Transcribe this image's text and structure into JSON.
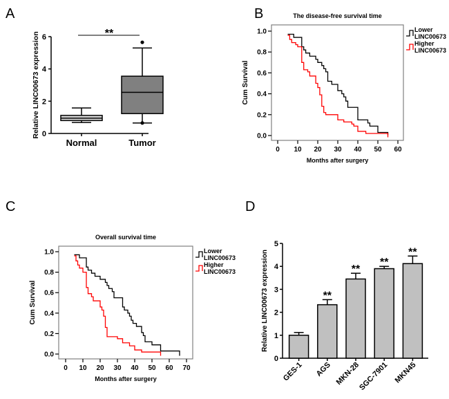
{
  "panels": {
    "A": "A",
    "B": "B",
    "C": "C",
    "D": "D"
  },
  "chart_data": [
    {
      "id": "A",
      "type": "box",
      "title": "",
      "xlabel": "",
      "ylabel": "Relative LINC00673 expression",
      "ylim": [
        0,
        6
      ],
      "yticks": [
        "0",
        "2",
        "4",
        "6"
      ],
      "yticks_values": [
        0,
        2,
        4,
        6
      ],
      "categories": [
        "Normal",
        "Tumor"
      ],
      "boxes": [
        {
          "name": "Normal",
          "min": 0.68,
          "q1": 0.8,
          "median": 0.95,
          "q3": 1.12,
          "max": 1.58,
          "outliers": [],
          "color": "#d3d3d3"
        },
        {
          "name": "Tumor",
          "min": 0.65,
          "q1": 1.23,
          "median": 2.55,
          "q3": 3.55,
          "max": 5.3,
          "outliers": [
            5.65,
            0.65
          ],
          "color": "#808080"
        }
      ],
      "significance": "**"
    },
    {
      "id": "B",
      "type": "line",
      "subtype": "kaplan-meier",
      "title": "The disease-free survival time",
      "xlabel": "Months after surgery",
      "ylabel": "Cum Survival",
      "xlim": [
        0,
        60
      ],
      "ylim": [
        0,
        1
      ],
      "xticks": [
        "0",
        "10",
        "20",
        "30",
        "40",
        "50",
        "60"
      ],
      "xticks_values": [
        0,
        10,
        20,
        30,
        40,
        50,
        60
      ],
      "yticks": [
        "0.0",
        "0.2",
        "0.4",
        "0.6",
        "0.8",
        "1.0"
      ],
      "yticks_values": [
        0,
        0.2,
        0.4,
        0.6,
        0.8,
        1.0
      ],
      "legend_position": "right",
      "series": [
        {
          "name": "Lower LINC00673",
          "label_line1": "Lower",
          "label_line2": "LINC00673",
          "color": "#000000",
          "x": [
            5,
            8,
            12,
            13,
            14,
            16,
            19,
            20,
            22,
            23,
            24,
            25,
            27,
            30,
            32,
            33,
            34,
            35,
            40,
            45,
            46,
            50,
            55
          ],
          "y": [
            0.97,
            0.94,
            0.85,
            0.82,
            0.79,
            0.76,
            0.73,
            0.7,
            0.67,
            0.64,
            0.61,
            0.52,
            0.49,
            0.43,
            0.4,
            0.37,
            0.33,
            0.27,
            0.15,
            0.12,
            0.09,
            0.03,
            0.03
          ]
        },
        {
          "name": "Higher LINC00673",
          "label_line1": "Higher",
          "label_line2": "LINC00673",
          "color": "#ff0000",
          "x": [
            5,
            6,
            7,
            9,
            10,
            11,
            12,
            13,
            15,
            16,
            19,
            20,
            21,
            22,
            23,
            24,
            30,
            33,
            37,
            38,
            40,
            44,
            55
          ],
          "y": [
            0.96,
            0.92,
            0.89,
            0.87,
            0.85,
            0.85,
            0.7,
            0.63,
            0.61,
            0.57,
            0.5,
            0.46,
            0.39,
            0.28,
            0.22,
            0.2,
            0.15,
            0.13,
            0.11,
            0.09,
            0.04,
            0.02,
            0.01
          ]
        }
      ]
    },
    {
      "id": "C",
      "type": "line",
      "subtype": "kaplan-meier",
      "title": "Overall survival time",
      "xlabel": "Months after surgery",
      "ylabel": "Cum Survival",
      "xlim": [
        0,
        70
      ],
      "ylim": [
        0,
        1
      ],
      "xticks": [
        "0",
        "10",
        "20",
        "30",
        "40",
        "50",
        "60",
        "70"
      ],
      "xticks_values": [
        0,
        10,
        20,
        30,
        40,
        50,
        60,
        70
      ],
      "yticks": [
        "0.0",
        "0.2",
        "0.4",
        "0.6",
        "0.8",
        "1.0"
      ],
      "yticks_values": [
        0,
        0.2,
        0.4,
        0.6,
        0.8,
        1.0
      ],
      "legend_position": "right",
      "series": [
        {
          "name": "Lower LINC00673",
          "label_line1": "Lower",
          "label_line2": "LINC00673",
          "color": "#000000",
          "x": [
            5,
            8,
            12,
            13,
            15,
            17,
            20,
            23,
            24,
            25,
            27,
            28,
            30,
            33,
            34,
            36,
            37,
            38,
            39,
            41,
            44,
            45,
            46,
            50,
            55,
            66
          ],
          "y": [
            0.97,
            0.94,
            0.85,
            0.82,
            0.79,
            0.76,
            0.73,
            0.7,
            0.67,
            0.64,
            0.61,
            0.55,
            0.55,
            0.46,
            0.43,
            0.4,
            0.37,
            0.33,
            0.3,
            0.27,
            0.21,
            0.18,
            0.12,
            0.09,
            0.03,
            0.01
          ]
        },
        {
          "name": "Higher LINC00673",
          "label_line1": "Higher",
          "label_line2": "LINC00673",
          "color": "#ff0000",
          "x": [
            5,
            6,
            7,
            8,
            10,
            12,
            13,
            15,
            16,
            20,
            21,
            22,
            23,
            24,
            30,
            33,
            37,
            40,
            44,
            55
          ],
          "y": [
            0.96,
            0.91,
            0.87,
            0.84,
            0.8,
            0.65,
            0.59,
            0.56,
            0.52,
            0.46,
            0.43,
            0.37,
            0.26,
            0.17,
            0.15,
            0.11,
            0.08,
            0.04,
            0.02,
            0.01
          ]
        }
      ]
    },
    {
      "id": "D",
      "type": "bar",
      "title": "",
      "xlabel": "",
      "ylabel": "Relative LINC00673 expression",
      "ylim": [
        0,
        5
      ],
      "yticks": [
        "0",
        "1",
        "2",
        "3",
        "4",
        "5"
      ],
      "yticks_values": [
        0,
        1,
        2,
        3,
        4,
        5
      ],
      "categories": [
        "GES-1",
        "AGS",
        "MKN-28",
        "SGC-7901",
        "MKN45"
      ],
      "values": [
        1.0,
        2.33,
        3.45,
        3.9,
        4.12
      ],
      "errors": [
        0.12,
        0.22,
        0.25,
        0.1,
        0.33
      ],
      "significance": [
        "",
        "**",
        "**",
        "**",
        "**"
      ],
      "bar_color": "#c0c0c0"
    }
  ]
}
